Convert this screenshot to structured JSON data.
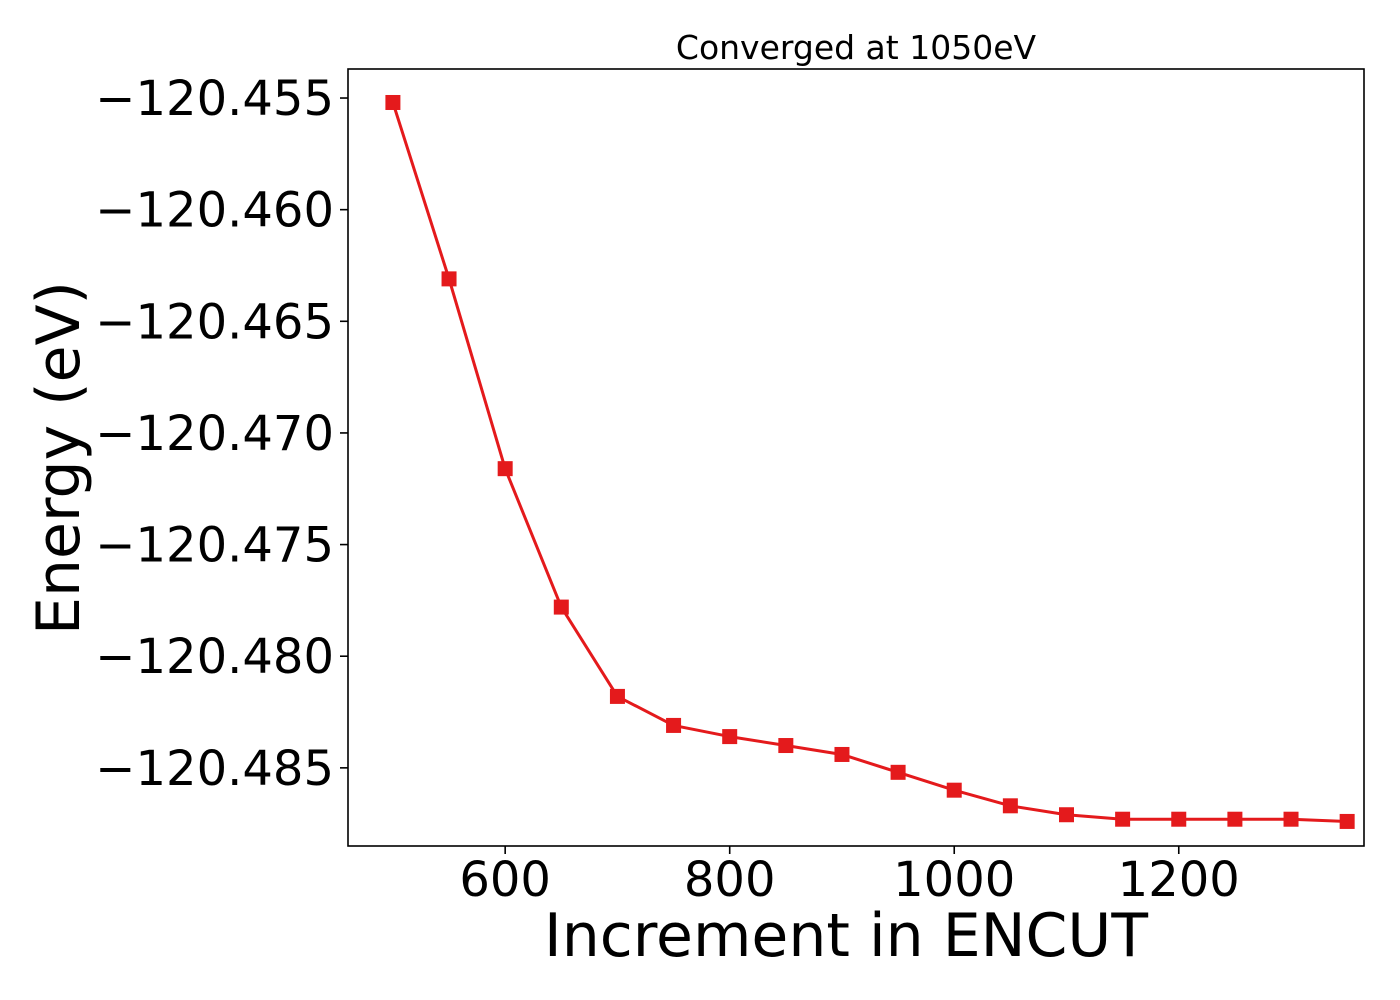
{
  "chart_data": {
    "type": "line",
    "title": "Converged at 1050eV",
    "xlabel": "Increment in ENCUT",
    "ylabel": "Energy (eV)",
    "xlim": [
      460,
      1365
    ],
    "ylim": [
      -120.4885,
      -120.4537
    ],
    "x_ticks": [
      600,
      800,
      1000,
      1200
    ],
    "y_ticks": [
      -120.455,
      -120.46,
      -120.465,
      -120.47,
      -120.475,
      -120.48,
      -120.485
    ],
    "y_tick_labels": [
      "−120.455",
      "−120.460",
      "−120.465",
      "−120.470",
      "−120.475",
      "−120.480",
      "−120.485"
    ],
    "grid": false,
    "series": [
      {
        "color": "#e41a1c",
        "marker": "square",
        "x": [
          500,
          550,
          600,
          650,
          700,
          750,
          800,
          850,
          900,
          950,
          1000,
          1050,
          1100,
          1150,
          1200,
          1250,
          1300,
          1350
        ],
        "y": [
          -120.4552,
          -120.4631,
          -120.4716,
          -120.4778,
          -120.4818,
          -120.4831,
          -120.4836,
          -120.484,
          -120.4844,
          -120.4852,
          -120.486,
          -120.4867,
          -120.4871,
          -120.4873,
          -120.4873,
          -120.4873,
          -120.4873,
          -120.4874
        ]
      }
    ]
  }
}
